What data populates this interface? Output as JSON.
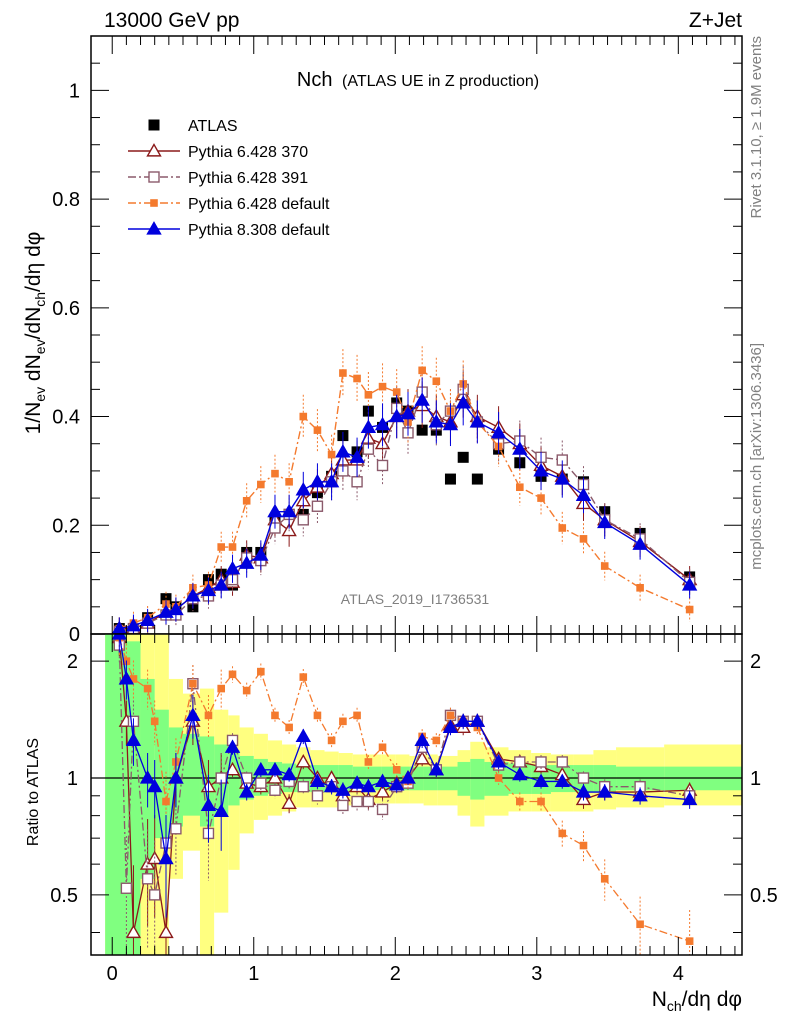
{
  "header": {
    "left": "13000 GeV pp",
    "right": "Z+Jet"
  },
  "side_text": {
    "rivet": "Rivet 3.1.10, ≥ 1.9M events",
    "mcplots": "mcplots.cern.ch [arXiv:1306.3436]"
  },
  "chart_data": [
    {
      "type": "line",
      "panel": "main",
      "title_main": "Nch",
      "title_sub": "(ATLAS UE in Z production)",
      "ylabel": "1/N_ev dN_ev/dN_ch/dη dφ",
      "xlabel": "N_ch/dη dφ",
      "analysis_label": "ATLAS_2019_I1736531",
      "xlim": [
        -0.15,
        4.45
      ],
      "ylim": [
        0,
        1.1
      ],
      "x_ticks": [
        "0",
        "1",
        "2",
        "3",
        "4"
      ],
      "y_ticks": [
        "0",
        "0.2",
        "0.4",
        "0.6",
        "0.8",
        "1"
      ],
      "legend_position": "top-left",
      "series": [
        {
          "name": "ATLAS",
          "style": "data",
          "color": "#000000",
          "x": [
            0.05,
            0.15,
            0.25,
            0.38,
            0.45,
            0.57,
            0.68,
            0.77,
            0.85,
            0.95,
            1.05,
            1.15,
            1.25,
            1.35,
            1.45,
            1.55,
            1.63,
            1.73,
            1.81,
            1.91,
            2.01,
            2.09,
            2.19,
            2.29,
            2.39,
            2.48,
            2.58,
            2.73,
            2.88,
            3.03,
            3.18,
            3.33,
            3.48,
            3.73,
            4.08
          ],
          "y": [
            0.01,
            0.01,
            0.03,
            0.065,
            0.05,
            0.05,
            0.1,
            0.11,
            0.09,
            0.15,
            0.15,
            0.21,
            0.22,
            0.22,
            0.26,
            0.29,
            0.365,
            0.335,
            0.41,
            0.38,
            0.425,
            0.41,
            0.375,
            0.375,
            0.285,
            0.325,
            0.285,
            0.34,
            0.315,
            0.29,
            0.285,
            0.28,
            0.225,
            0.185,
            0.105
          ]
        },
        {
          "name": "Pythia 6.428 370",
          "style": "solid",
          "marker": "open-triangle",
          "color": "#8b1a1a",
          "x": [
            0.05,
            0.15,
            0.25,
            0.38,
            0.45,
            0.57,
            0.68,
            0.77,
            0.85,
            0.95,
            1.05,
            1.15,
            1.25,
            1.35,
            1.45,
            1.55,
            1.63,
            1.73,
            1.81,
            1.91,
            2.01,
            2.09,
            2.19,
            2.29,
            2.39,
            2.48,
            2.58,
            2.73,
            2.88,
            3.03,
            3.18,
            3.33,
            3.48,
            3.73,
            4.08
          ],
          "y": [
            0.01,
            0.01,
            0.02,
            0.04,
            0.045,
            0.07,
            0.085,
            0.1,
            0.095,
            0.145,
            0.14,
            0.21,
            0.19,
            0.245,
            0.27,
            0.295,
            0.32,
            0.32,
            0.36,
            0.35,
            0.4,
            0.41,
            0.42,
            0.4,
            0.39,
            0.44,
            0.4,
            0.38,
            0.35,
            0.31,
            0.29,
            0.24,
            0.21,
            0.17,
            0.1
          ]
        },
        {
          "name": "Pythia 6.428 391",
          "style": "dashdot",
          "marker": "open-square",
          "color": "#8b5a6b",
          "x": [
            0.05,
            0.15,
            0.25,
            0.38,
            0.45,
            0.57,
            0.68,
            0.77,
            0.85,
            0.95,
            1.05,
            1.15,
            1.25,
            1.35,
            1.45,
            1.55,
            1.63,
            1.73,
            1.81,
            1.91,
            2.01,
            2.09,
            2.19,
            2.29,
            2.39,
            2.48,
            2.58,
            2.73,
            2.88,
            3.03,
            3.18,
            3.33,
            3.48,
            3.73,
            4.08
          ],
          "y": [
            0.005,
            0.01,
            0.02,
            0.035,
            0.035,
            0.065,
            0.07,
            0.09,
            0.1,
            0.14,
            0.135,
            0.195,
            0.22,
            0.21,
            0.235,
            0.28,
            0.3,
            0.28,
            0.34,
            0.31,
            0.415,
            0.37,
            0.445,
            0.385,
            0.41,
            0.45,
            0.39,
            0.35,
            0.355,
            0.325,
            0.32,
            0.275,
            0.21,
            0.175,
            0.095
          ]
        },
        {
          "name": "Pythia 6.428 default",
          "style": "dashdot",
          "marker": "filled-square",
          "color": "#f47a2e",
          "x": [
            0.05,
            0.15,
            0.25,
            0.38,
            0.45,
            0.57,
            0.68,
            0.77,
            0.85,
            0.95,
            1.05,
            1.15,
            1.25,
            1.35,
            1.45,
            1.55,
            1.63,
            1.73,
            1.81,
            1.91,
            2.01,
            2.09,
            2.19,
            2.29,
            2.39,
            2.48,
            2.58,
            2.73,
            2.88,
            3.03,
            3.18,
            3.33,
            3.48,
            3.73,
            4.08
          ],
          "y": [
            0.01,
            0.02,
            0.03,
            0.055,
            0.05,
            0.085,
            0.09,
            0.16,
            0.16,
            0.245,
            0.275,
            0.295,
            0.28,
            0.4,
            0.375,
            0.33,
            0.48,
            0.47,
            0.44,
            0.455,
            0.445,
            0.39,
            0.485,
            0.465,
            0.41,
            0.46,
            0.39,
            0.345,
            0.27,
            0.25,
            0.195,
            0.175,
            0.125,
            0.085,
            0.045
          ]
        },
        {
          "name": "Pythia 8.308 default",
          "style": "solid",
          "marker": "filled-triangle",
          "color": "#0000dd",
          "x": [
            0.05,
            0.15,
            0.25,
            0.38,
            0.45,
            0.57,
            0.68,
            0.77,
            0.85,
            0.95,
            1.05,
            1.15,
            1.25,
            1.35,
            1.45,
            1.55,
            1.63,
            1.73,
            1.81,
            1.91,
            2.01,
            2.09,
            2.19,
            2.29,
            2.39,
            2.48,
            2.58,
            2.73,
            2.88,
            3.03,
            3.18,
            3.33,
            3.48,
            3.73,
            4.08
          ],
          "y": [
            0.01,
            0.015,
            0.025,
            0.04,
            0.045,
            0.07,
            0.08,
            0.09,
            0.12,
            0.13,
            0.145,
            0.225,
            0.225,
            0.265,
            0.28,
            0.28,
            0.335,
            0.325,
            0.38,
            0.385,
            0.4,
            0.405,
            0.43,
            0.39,
            0.385,
            0.425,
            0.39,
            0.37,
            0.34,
            0.3,
            0.285,
            0.255,
            0.205,
            0.165,
            0.09
          ]
        }
      ]
    },
    {
      "type": "line",
      "panel": "ratio",
      "ylabel": "Ratio to ATLAS",
      "xlim": [
        -0.15,
        4.45
      ],
      "ylim": [
        0.35,
        2.35
      ],
      "y_ticks": [
        "0.5",
        "1",
        "2"
      ],
      "bands": {
        "yellow": {
          "color": "#ffff80",
          "edges": [
            -0.05,
            0.1,
            0.2,
            0.3,
            0.4,
            0.5,
            0.62,
            0.72,
            0.82,
            0.9,
            1.0,
            1.1,
            1.2,
            1.3,
            1.4,
            1.5,
            1.6,
            1.7,
            1.8,
            1.9,
            2.0,
            2.1,
            2.2,
            2.3,
            2.44,
            2.53,
            2.63,
            2.8,
            2.96,
            3.1,
            3.26,
            3.4,
            3.56,
            3.9,
            4.45
          ],
          "lo": [
            0.35,
            0.35,
            0.35,
            0.35,
            0.55,
            0.65,
            0.35,
            0.45,
            0.58,
            0.72,
            0.78,
            0.8,
            0.82,
            0.84,
            0.84,
            0.84,
            0.85,
            0.86,
            0.86,
            0.86,
            0.86,
            0.86,
            0.85,
            0.85,
            0.8,
            0.75,
            0.8,
            0.82,
            0.82,
            0.82,
            0.82,
            0.83,
            0.84,
            0.85,
            0.85
          ],
          "hi": [
            2.35,
            2.35,
            2.35,
            2.35,
            1.8,
            1.65,
            1.7,
            1.5,
            1.45,
            1.35,
            1.3,
            1.25,
            1.22,
            1.2,
            1.18,
            1.17,
            1.16,
            1.15,
            1.15,
            1.15,
            1.15,
            1.14,
            1.15,
            1.14,
            1.18,
            1.24,
            1.2,
            1.18,
            1.16,
            1.15,
            1.15,
            1.18,
            1.2,
            1.22,
            1.22
          ]
        },
        "green": {
          "color": "#80ff80",
          "edges": [
            -0.05,
            0.1,
            0.2,
            0.3,
            0.4,
            0.5,
            0.62,
            0.72,
            0.82,
            0.9,
            1.0,
            1.1,
            1.2,
            1.3,
            1.4,
            1.5,
            1.6,
            1.7,
            1.8,
            1.9,
            2.0,
            2.1,
            2.2,
            2.3,
            2.44,
            2.53,
            2.63,
            2.8,
            2.96,
            3.1,
            3.26,
            3.4,
            3.56,
            3.9,
            4.45
          ],
          "lo": [
            0.35,
            0.35,
            0.55,
            0.7,
            0.75,
            0.8,
            0.75,
            0.8,
            0.85,
            0.88,
            0.9,
            0.91,
            0.92,
            0.92,
            0.92,
            0.92,
            0.92,
            0.93,
            0.93,
            0.93,
            0.93,
            0.93,
            0.93,
            0.93,
            0.9,
            0.88,
            0.9,
            0.91,
            0.91,
            0.92,
            0.92,
            0.92,
            0.93,
            0.93,
            0.93
          ],
          "hi": [
            2.35,
            2.25,
            1.8,
            1.5,
            1.35,
            1.3,
            1.28,
            1.22,
            1.18,
            1.14,
            1.12,
            1.1,
            1.09,
            1.08,
            1.08,
            1.08,
            1.08,
            1.07,
            1.07,
            1.07,
            1.07,
            1.07,
            1.07,
            1.07,
            1.1,
            1.12,
            1.1,
            1.09,
            1.08,
            1.08,
            1.08,
            1.08,
            1.07,
            1.07,
            1.07
          ]
        }
      },
      "series": [
        {
          "name": "Pythia 6.428 370",
          "color": "#8b1a1a",
          "x": [
            0.05,
            0.1,
            0.15,
            0.25,
            0.3,
            0.38,
            0.45,
            0.57,
            0.68,
            0.77,
            0.85,
            0.95,
            1.05,
            1.15,
            1.25,
            1.35,
            1.45,
            1.55,
            1.63,
            1.73,
            1.81,
            1.91,
            2.01,
            2.09,
            2.19,
            2.29,
            2.39,
            2.48,
            2.58,
            2.73,
            2.88,
            3.03,
            3.18,
            3.33,
            3.48,
            3.73,
            4.08
          ],
          "y": [
            2.3,
            1.4,
            0.4,
            0.6,
            0.62,
            0.4,
            1.0,
            1.4,
            0.95,
            1.0,
            1.05,
            0.97,
            0.95,
            1.0,
            0.86,
            1.1,
            1.0,
            1.0,
            0.9,
            0.95,
            0.88,
            0.92,
            0.97,
            1.0,
            1.12,
            1.05,
            1.37,
            1.35,
            1.4,
            1.12,
            1.1,
            1.07,
            1.02,
            0.88,
            0.92,
            0.92,
            0.93
          ]
        },
        {
          "name": "Pythia 6.428 391",
          "color": "#8b5a6b",
          "x": [
            0.05,
            0.1,
            0.15,
            0.25,
            0.3,
            0.38,
            0.45,
            0.57,
            0.68,
            0.77,
            0.85,
            0.95,
            1.05,
            1.15,
            1.25,
            1.35,
            1.45,
            1.55,
            1.63,
            1.73,
            1.81,
            1.91,
            2.01,
            2.09,
            2.19,
            2.29,
            2.39,
            2.48,
            2.58,
            2.73,
            2.88,
            3.03,
            3.18,
            3.33,
            3.48,
            3.73,
            4.08
          ],
          "y": [
            2.2,
            0.52,
            1.4,
            0.55,
            0.5,
            0.68,
            0.74,
            1.75,
            0.72,
            1.0,
            1.25,
            1.0,
            0.97,
            0.93,
            0.98,
            0.95,
            0.9,
            0.95,
            0.85,
            0.87,
            0.87,
            0.83,
            0.95,
            0.97,
            1.2,
            1.05,
            1.45,
            1.4,
            1.4,
            1.08,
            1.1,
            1.1,
            1.1,
            1.0,
            0.95,
            0.95,
            0.9
          ]
        },
        {
          "name": "Pythia 6.428 default",
          "color": "#f47a2e",
          "x": [
            0.05,
            0.1,
            0.15,
            0.25,
            0.3,
            0.38,
            0.45,
            0.57,
            0.68,
            0.77,
            0.85,
            0.95,
            1.05,
            1.15,
            1.25,
            1.35,
            1.45,
            1.55,
            1.63,
            1.73,
            1.81,
            1.91,
            2.01,
            2.09,
            2.19,
            2.29,
            2.39,
            2.48,
            2.58,
            2.73,
            2.88,
            3.03,
            3.18,
            3.33,
            3.48,
            3.73,
            4.08
          ],
          "y": [
            2.3,
            2.0,
            1.8,
            1.7,
            1.4,
            0.87,
            1.1,
            1.75,
            1.45,
            1.7,
            1.85,
            1.68,
            1.88,
            1.45,
            1.35,
            1.82,
            1.45,
            1.25,
            1.4,
            1.45,
            1.1,
            1.2,
            1.05,
            0.98,
            1.28,
            1.25,
            1.45,
            1.4,
            1.35,
            1.0,
            0.87,
            0.87,
            0.72,
            0.67,
            0.55,
            0.42,
            0.38
          ]
        },
        {
          "name": "Pythia 8.308 default",
          "color": "#0000dd",
          "x": [
            0.05,
            0.1,
            0.15,
            0.25,
            0.3,
            0.38,
            0.45,
            0.57,
            0.68,
            0.77,
            0.85,
            0.95,
            1.05,
            1.15,
            1.25,
            1.35,
            1.45,
            1.55,
            1.63,
            1.73,
            1.81,
            1.91,
            2.01,
            2.09,
            2.19,
            2.29,
            2.39,
            2.48,
            2.58,
            2.73,
            2.88,
            3.03,
            3.18,
            3.33,
            3.48,
            3.73,
            4.08
          ],
          "y": [
            2.35,
            1.8,
            1.25,
            1.0,
            0.95,
            0.62,
            1.0,
            1.45,
            0.85,
            0.82,
            1.2,
            0.92,
            1.05,
            1.05,
            1.02,
            1.28,
            0.98,
            0.95,
            0.93,
            0.97,
            0.95,
            0.98,
            0.96,
            1.0,
            1.25,
            1.05,
            1.35,
            1.4,
            1.4,
            1.1,
            1.02,
            0.98,
            0.98,
            0.92,
            0.92,
            0.9,
            0.88
          ]
        }
      ]
    }
  ]
}
